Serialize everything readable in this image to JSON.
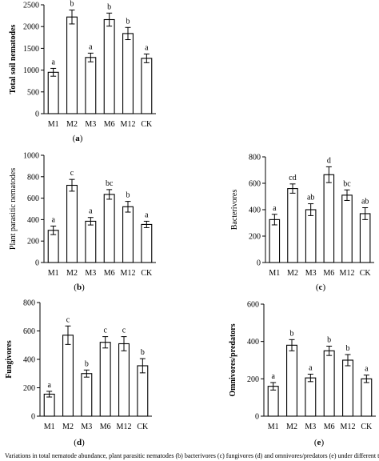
{
  "figure": {
    "caption": "Variations in total nematode abundance, plant parasitic nematodes (b) bacterivores (c) fungivores (d) and omnivores/predators (e) under different treatments"
  },
  "chart_data": [
    {
      "type": "bar",
      "panel_label": "a",
      "ylabel": "Total soil nematodes",
      "ylabel_bold": true,
      "categories": [
        "M1",
        "M2",
        "M3",
        "M6",
        "M12",
        "CK"
      ],
      "values": [
        950,
        2220,
        1290,
        2160,
        1840,
        1270
      ],
      "errors": [
        90,
        160,
        100,
        150,
        140,
        100
      ],
      "letters": [
        "a",
        "b",
        "a",
        "b",
        "b",
        "a"
      ],
      "ylim": [
        0,
        2500
      ],
      "yticks": [
        0,
        500,
        1000,
        1500,
        2000,
        2500
      ],
      "grid": false
    },
    {
      "type": "bar",
      "panel_label": "b",
      "ylabel": "Plant parasitic nematodes",
      "ylabel_bold": false,
      "categories": [
        "M1",
        "M2",
        "M3",
        "M6",
        "M12",
        "CK"
      ],
      "values": [
        300,
        720,
        385,
        635,
        520,
        355
      ],
      "errors": [
        40,
        55,
        35,
        45,
        50,
        30
      ],
      "letters": [
        "a",
        "c",
        "a",
        "bc",
        "b",
        "a"
      ],
      "ylim": [
        0,
        1000
      ],
      "yticks": [
        0,
        200,
        400,
        600,
        800,
        1000
      ],
      "grid": false
    },
    {
      "type": "bar",
      "panel_label": "c",
      "ylabel": "Bacterivores",
      "ylabel_bold": false,
      "categories": [
        "M1",
        "M2",
        "M3",
        "M6",
        "M12",
        "CK"
      ],
      "values": [
        325,
        560,
        400,
        665,
        510,
        370
      ],
      "errors": [
        40,
        35,
        45,
        60,
        40,
        45
      ],
      "letters": [
        "a",
        "cd",
        "ab",
        "d",
        "bc",
        "ab"
      ],
      "ylim": [
        0,
        800
      ],
      "yticks": [
        0,
        200,
        400,
        600,
        800
      ],
      "grid": false
    },
    {
      "type": "bar",
      "panel_label": "d",
      "ylabel": "Fungivores",
      "ylabel_bold": true,
      "categories": [
        "M1",
        "M2",
        "M3",
        "M6",
        "M12",
        "CK"
      ],
      "values": [
        155,
        570,
        300,
        520,
        510,
        355
      ],
      "errors": [
        20,
        65,
        25,
        40,
        50,
        50
      ],
      "letters": [
        "a",
        "c",
        "b",
        "c",
        "c",
        "b"
      ],
      "ylim": [
        0,
        800
      ],
      "yticks": [
        0,
        200,
        400,
        600,
        800
      ],
      "grid": false
    },
    {
      "type": "bar",
      "panel_label": "e",
      "ylabel": "Omnivores/predators",
      "ylabel_bold": true,
      "categories": [
        "M1",
        "M2",
        "M3",
        "M6",
        "M12",
        "CK"
      ],
      "values": [
        160,
        380,
        205,
        350,
        300,
        200
      ],
      "errors": [
        20,
        30,
        20,
        25,
        30,
        20
      ],
      "letters": [
        "a",
        "b",
        "a",
        "b",
        "b",
        "a"
      ],
      "ylim": [
        0,
        600
      ],
      "yticks": [
        0,
        200,
        400,
        600
      ],
      "grid": false
    }
  ]
}
